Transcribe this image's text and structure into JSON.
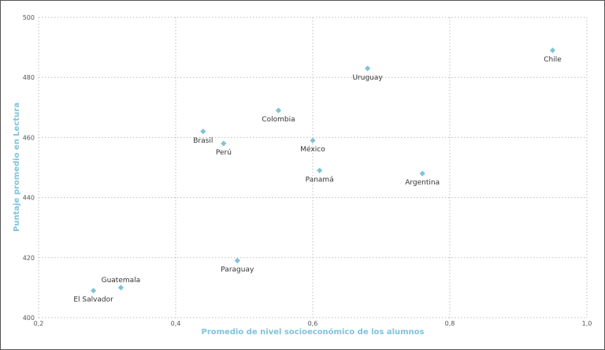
{
  "chart_data": {
    "type": "scatter",
    "title": "",
    "xlabel": "Promedio de nivel socioeconómico de los alumnos",
    "ylabel": "Puntaje promedio en Lectura",
    "xlim": [
      0.2,
      1.0
    ],
    "ylim": [
      400,
      500
    ],
    "xticks": [
      "0,2",
      "0,4",
      "0,6",
      "0,8",
      "1,0"
    ],
    "xtick_values": [
      0.2,
      0.4,
      0.6,
      0.8,
      1.0
    ],
    "yticks": [
      "400",
      "420",
      "440",
      "460",
      "480",
      "500"
    ],
    "ytick_values": [
      400,
      420,
      440,
      460,
      480,
      500
    ],
    "grid": true,
    "marker_color": "#7fc3d9",
    "points": [
      {
        "name": "Chile",
        "x": 0.95,
        "y": 489
      },
      {
        "name": "Uruguay",
        "x": 0.68,
        "y": 483
      },
      {
        "name": "Colombia",
        "x": 0.55,
        "y": 469
      },
      {
        "name": "Brasil",
        "x": 0.44,
        "y": 462
      },
      {
        "name": "Perú",
        "x": 0.47,
        "y": 458
      },
      {
        "name": "México",
        "x": 0.6,
        "y": 459
      },
      {
        "name": "Panamá",
        "x": 0.61,
        "y": 449
      },
      {
        "name": "Argentina",
        "x": 0.76,
        "y": 448
      },
      {
        "name": "Paraguay",
        "x": 0.49,
        "y": 419
      },
      {
        "name": "Guatemala",
        "x": 0.32,
        "y": 410
      },
      {
        "name": "El Salvador",
        "x": 0.28,
        "y": 409
      }
    ]
  }
}
